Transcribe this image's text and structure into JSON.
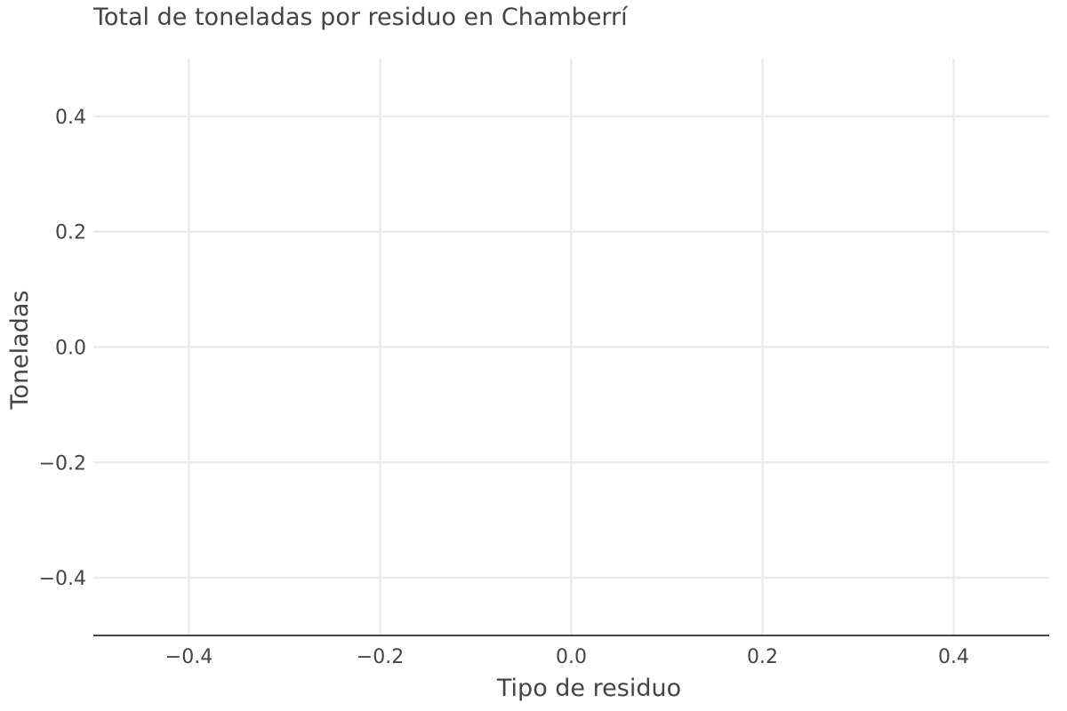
{
  "chart_data": {
    "type": "bar",
    "title": "Total de toneladas por residuo en Chamberrí",
    "xlabel": "Tipo de residuo",
    "ylabel": "Toneladas",
    "xlim": [
      -0.5,
      0.5
    ],
    "ylim": [
      -0.5,
      0.5
    ],
    "x_ticks": [
      -0.4,
      -0.2,
      0.0,
      0.2,
      0.4
    ],
    "x_tick_labels": [
      "−0.4",
      "−0.2",
      "0.0",
      "0.2",
      "0.4"
    ],
    "y_ticks": [
      0.4,
      0.2,
      0.0,
      -0.2,
      -0.4
    ],
    "y_tick_labels": [
      "0.4",
      "0.2",
      "0.0",
      "−0.2",
      "−0.4"
    ],
    "categories": [],
    "values": [],
    "grid": true,
    "legend": "none"
  }
}
